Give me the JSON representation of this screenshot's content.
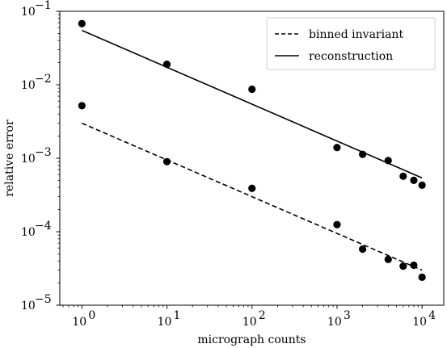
{
  "chart_data": {
    "type": "scatter",
    "xlabel": "micrograph counts",
    "ylabel": "relative error",
    "xscale": "log",
    "yscale": "log",
    "xlim": [
      0.55,
      18000
    ],
    "ylim": [
      1e-05,
      0.1
    ],
    "grid": false,
    "legend_placement": "top-right",
    "x_ticks": [
      {
        "value": 1,
        "label": "10",
        "exp": "0"
      },
      {
        "value": 10,
        "label": "10",
        "exp": "1"
      },
      {
        "value": 100,
        "label": "10",
        "exp": "2"
      },
      {
        "value": 1000,
        "label": "10",
        "exp": "3"
      },
      {
        "value": 10000,
        "label": "10",
        "exp": "4"
      }
    ],
    "y_ticks": [
      {
        "value": 1e-05,
        "label": "10",
        "exp": "−5"
      },
      {
        "value": 0.0001,
        "label": "10",
        "exp": "−4"
      },
      {
        "value": 0.001,
        "label": "10",
        "exp": "−3"
      },
      {
        "value": 0.01,
        "label": "10",
        "exp": "−2"
      },
      {
        "value": 0.1,
        "label": "10",
        "exp": "−1"
      }
    ],
    "series": [
      {
        "name": "reconstruction",
        "line_style": "solid",
        "color": "#000000",
        "points": [
          {
            "x": 1,
            "y": 0.068
          },
          {
            "x": 10,
            "y": 0.019
          },
          {
            "x": 100,
            "y": 0.0087
          },
          {
            "x": 1000,
            "y": 0.0014
          },
          {
            "x": 2000,
            "y": 0.00113
          },
          {
            "x": 4000,
            "y": 0.00093
          },
          {
            "x": 6000,
            "y": 0.00057
          },
          {
            "x": 8000,
            "y": 0.0005
          },
          {
            "x": 10000,
            "y": 0.00043
          }
        ],
        "fit": [
          {
            "x": 1,
            "y": 0.055
          },
          {
            "x": 10000,
            "y": 0.00054
          }
        ]
      },
      {
        "name": "binned invariant",
        "line_style": "dashed",
        "color": "#000000",
        "points": [
          {
            "x": 1,
            "y": 0.0052
          },
          {
            "x": 10,
            "y": 0.0009
          },
          {
            "x": 100,
            "y": 0.00039
          },
          {
            "x": 1000,
            "y": 0.000125
          },
          {
            "x": 2000,
            "y": 5.8e-05
          },
          {
            "x": 4000,
            "y": 4.2e-05
          },
          {
            "x": 6000,
            "y": 3.4e-05
          },
          {
            "x": 8000,
            "y": 3.5e-05
          },
          {
            "x": 10000,
            "y": 2.4e-05
          }
        ],
        "fit": [
          {
            "x": 1,
            "y": 0.003
          },
          {
            "x": 10000,
            "y": 3e-05
          }
        ]
      }
    ],
    "legend": [
      {
        "label": "binned invariant",
        "line_style": "dashed"
      },
      {
        "label": "reconstruction",
        "line_style": "solid"
      }
    ]
  }
}
